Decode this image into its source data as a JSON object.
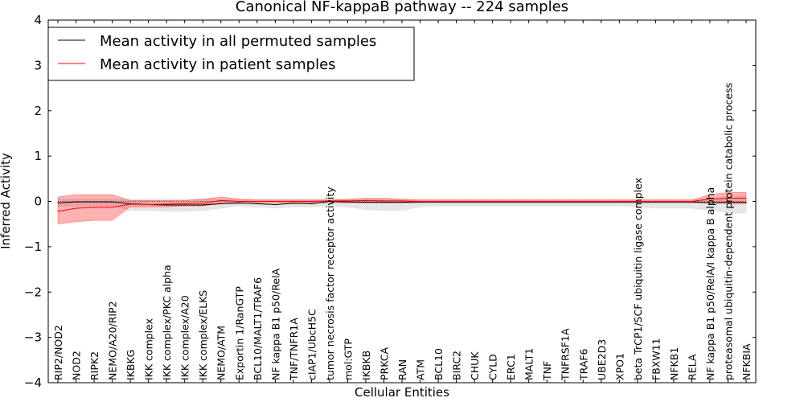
{
  "chart_data": {
    "type": "line",
    "title": "Canonical NF-kappaB pathway -- 224 samples",
    "xlabel": "Cellular Entities",
    "ylabel": "Inferred Activity",
    "ylim": [
      -4,
      4
    ],
    "yticks": [
      -4,
      -3,
      -2,
      -1,
      0,
      1,
      2,
      3,
      4
    ],
    "ytick_labels": [
      "−4",
      "−3",
      "−2",
      "−1",
      "0",
      "1",
      "2",
      "3",
      "4"
    ],
    "grid": false,
    "legend_position": "top-left",
    "categories": [
      "RIP2/NOD2",
      "NOD2",
      "RIPK2",
      "NEMO/A20/RIP2",
      "IKBKG",
      "IKK complex",
      "IKK complex/PKC alpha",
      "IKK complex/A20",
      "IKK complex/ELKS",
      "NEMO/ATM",
      "Exportin 1/RanGTP",
      "BCL10/MALT1/TRAF6",
      "NF kappa B1 p50/RelA",
      "TNF/TNFR1A",
      "cIAP1/UbcH5C",
      "tumor necrosis factor receptor activity",
      "mol:GTP",
      "IKBKB",
      "PRKCA",
      "RAN",
      "ATM",
      "BCL10",
      "BIRC2",
      "CHUK",
      "CYLD",
      "ERC1",
      "MALT1",
      "TNF",
      "TNFRSF1A",
      "TRAF6",
      "UBE2D3",
      "XPO1",
      "beta TrCP1/SCF ubiquitin ligase complex",
      "FBXW11",
      "NFKB1",
      "RELA",
      "NF kappa B1 p50/RelA/I kappa B alpha",
      "proteasomal ubiquitin-dependent protein catabolic process",
      "NFKBIA"
    ],
    "series": [
      {
        "name": "Mean activity in all permuted samples",
        "color": "#000000",
        "band_color": "#c8c8c8",
        "values": [
          -0.03,
          -0.01,
          -0.01,
          -0.01,
          -0.05,
          -0.07,
          -0.08,
          -0.08,
          -0.08,
          -0.05,
          -0.03,
          -0.05,
          -0.07,
          -0.04,
          -0.05,
          0,
          -0.01,
          -0.02,
          -0.02,
          -0.02,
          -0.01,
          -0.01,
          -0.01,
          -0.01,
          -0.01,
          -0.01,
          -0.01,
          -0.01,
          -0.01,
          -0.01,
          -0.01,
          -0.01,
          -0.01,
          -0.01,
          -0.01,
          -0.01,
          -0.03,
          -0.02,
          -0.02
        ],
        "upper": [
          0.05,
          0.05,
          0.05,
          0.05,
          0.05,
          0.05,
          0.05,
          0.05,
          0.05,
          0.05,
          0.05,
          0.05,
          0.05,
          0.05,
          0.05,
          0.05,
          0.05,
          0.05,
          0.05,
          0.05,
          0.05,
          0.05,
          0.05,
          0.05,
          0.05,
          0.05,
          0.05,
          0.05,
          0.05,
          0.05,
          0.05,
          0.05,
          0.05,
          0.05,
          0.05,
          0.05,
          0.05,
          0.1,
          0.12
        ],
        "lower": [
          -0.12,
          -0.1,
          -0.1,
          -0.1,
          -0.2,
          -0.2,
          -0.22,
          -0.22,
          -0.2,
          -0.15,
          -0.1,
          -0.12,
          -0.15,
          -0.12,
          -0.12,
          -0.1,
          -0.12,
          -0.18,
          -0.2,
          -0.2,
          -0.12,
          -0.1,
          -0.1,
          -0.1,
          -0.1,
          -0.1,
          -0.1,
          -0.1,
          -0.1,
          -0.1,
          -0.1,
          -0.1,
          -0.12,
          -0.15,
          -0.15,
          -0.15,
          -0.2,
          -0.25,
          -0.25
        ]
      },
      {
        "name": "Mean activity in patient samples",
        "color": "#ff0000",
        "band_color": "#ff0000",
        "values": [
          -0.22,
          -0.15,
          -0.13,
          -0.13,
          -0.06,
          -0.07,
          -0.06,
          -0.05,
          -0.04,
          0.02,
          0,
          0,
          0,
          0,
          0,
          0.01,
          0.01,
          0.02,
          0.01,
          0.01,
          0,
          0,
          0,
          0,
          0,
          0,
          0,
          0,
          0,
          0,
          0,
          0,
          0,
          0,
          0,
          0,
          0.05,
          0.07,
          0.07
        ],
        "upper": [
          0.1,
          0.15,
          0.15,
          0.15,
          0.02,
          0.02,
          0.02,
          0.02,
          0.05,
          0.1,
          0.05,
          0.03,
          0.03,
          0.03,
          0.03,
          0.03,
          0.05,
          0.07,
          0.07,
          0.05,
          0.03,
          0.03,
          0.03,
          0.03,
          0.03,
          0.03,
          0.03,
          0.03,
          0.03,
          0.03,
          0.03,
          0.03,
          0.03,
          0.03,
          0.03,
          0.03,
          0.15,
          0.2,
          0.2
        ],
        "lower": [
          -0.5,
          -0.45,
          -0.42,
          -0.42,
          -0.12,
          -0.12,
          -0.12,
          -0.1,
          -0.1,
          -0.05,
          -0.05,
          -0.03,
          -0.03,
          -0.03,
          -0.03,
          -0.03,
          -0.03,
          -0.03,
          -0.03,
          -0.03,
          -0.03,
          -0.03,
          -0.03,
          -0.03,
          -0.03,
          -0.03,
          -0.03,
          -0.03,
          -0.03,
          -0.03,
          -0.03,
          -0.03,
          -0.03,
          -0.03,
          -0.03,
          -0.03,
          -0.03,
          -0.05,
          -0.05
        ]
      }
    ]
  }
}
